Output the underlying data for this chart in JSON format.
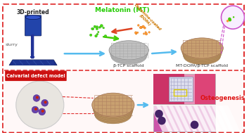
{
  "bg_color": "#ffffff",
  "border_color": "#e03030",
  "title_3d": "3D-printed",
  "title_mt": "Melatonin (MT)",
  "label_slurry": "slurry",
  "label_beta_tcp": "β-TCP scaffold",
  "label_mt_dopa": "MT-DOPA/β-TCP scaffold",
  "label_dopa": "Dopamine-coated\n(DOPA)",
  "label_calvarial": "Calvarial defect model",
  "label_osteogenesis": "Osteogenesis",
  "arrow_blue": "#55bbee",
  "arrow_green": "#44cc00",
  "arrow_red": "#dd4422",
  "arrow_orange": "#ee8800",
  "arrow_purple": "#cc55cc",
  "printer_dark": "#1a2e8a",
  "printer_mid": "#2244aa",
  "scaffold_gray_face": "#c0c0c0",
  "scaffold_gray_edge": "#888888",
  "scaffold_gray_line": "#aaaaaa",
  "scaffold_tan_face": "#c8a070",
  "scaffold_tan_edge": "#a07050",
  "scaffold_tan_line": "#b08060",
  "zoom_circle_face": "#f8eeff",
  "zoom_circle_edge": "#cc55cc",
  "calvarial_face": "#e8e5e0",
  "calvarial_edge": "#cccccc",
  "bottom_bg": "#fff8f8",
  "hist1_face": "#e8b0c8",
  "hist2_face": "#cc60a0",
  "hist_scaffold_face": "#ddddee",
  "hist_scaffold_edge": "#8888aa",
  "osteogenesis_color": "#dd1111",
  "red_label_face": "#cc1111"
}
